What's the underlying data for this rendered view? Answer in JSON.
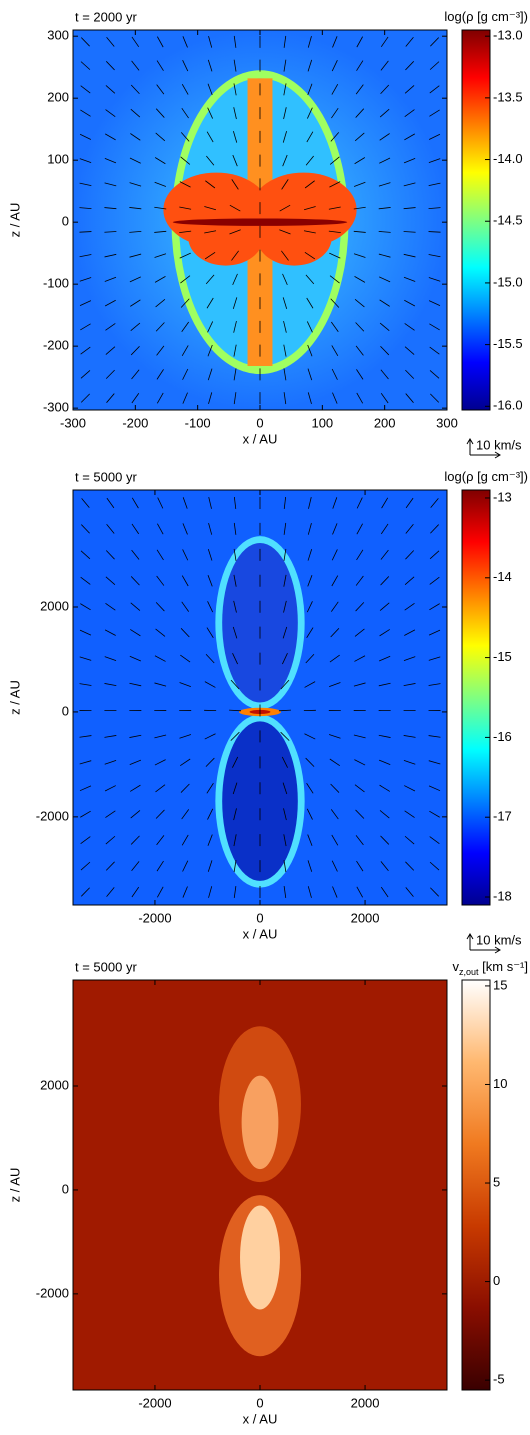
{
  "chart_data": [
    {
      "type": "heatmap",
      "title": "t = 2000 yr",
      "colorbar_label": [
        "log(ρ [g cm⁻³])"
      ],
      "xlabel": "x / AU",
      "ylabel": "z / AU",
      "arrow_key": "10 km/s",
      "xlim": [
        -300,
        300
      ],
      "ylim": [
        -303,
        310
      ],
      "xticks": [
        -300,
        -200,
        -100,
        0,
        100,
        200,
        300
      ],
      "yticks": [
        -300,
        -200,
        -100,
        0,
        100,
        200,
        300
      ],
      "clim": [
        -16.03,
        -12.95
      ],
      "cticks": [
        {
          "value": -16,
          "label": "-16.0"
        },
        {
          "value": -15.5,
          "label": "-15.5"
        },
        {
          "value": -15,
          "label": "-15.0"
        },
        {
          "value": -14.5,
          "label": "-14.5"
        },
        {
          "value": -14,
          "label": "-14.0"
        },
        {
          "value": -13.5,
          "label": "-13.5"
        },
        {
          "value": -13,
          "label": "-13.0"
        }
      ],
      "colormap": [
        "#00008f",
        "#0000ff",
        "#0080ff",
        "#00ffff",
        "#80ff80",
        "#ffff00",
        "#ff8000",
        "#ff0000",
        "#800000"
      ]
    },
    {
      "type": "heatmap",
      "title": "t = 5000 yr",
      "colorbar_label": [
        "log(ρ [g cm⁻³])"
      ],
      "xlabel": "x / AU",
      "ylabel": "z / AU",
      "arrow_key": "10 km/s",
      "xlim": [
        -3560,
        3560
      ],
      "ylim": [
        -3680,
        4230
      ],
      "xticks": [
        -2000,
        0,
        2000
      ],
      "yticks": [
        -2000,
        0,
        2000
      ],
      "clim": [
        -18.1,
        -12.9
      ],
      "cticks": [
        -18,
        -17,
        -16,
        -15,
        -14,
        -13
      ],
      "colormap": [
        "#00008f",
        "#0000ff",
        "#0080ff",
        "#00ffff",
        "#80ff80",
        "#ffff00",
        "#ff8000",
        "#ff0000",
        "#800000"
      ]
    },
    {
      "type": "heatmap",
      "title": "t = 5000 yr",
      "colorbar_label": [
        "v",
        "z,out",
        " [km s⁻¹]"
      ],
      "xlabel": "x / AU",
      "ylabel": "z / AU",
      "xlim": [
        -3560,
        3560
      ],
      "ylim": [
        -3850,
        4040
      ],
      "xticks": [
        -2000,
        0,
        2000
      ],
      "yticks": [
        -2000,
        0,
        2000
      ],
      "clim": [
        -5.5,
        15.3
      ],
      "cticks": [
        -5,
        0,
        5,
        10,
        15
      ],
      "colormap": [
        "#3a0000",
        "#8a0e00",
        "#c83a00",
        "#f07a20",
        "#ffb870",
        "#ffffff"
      ]
    }
  ]
}
